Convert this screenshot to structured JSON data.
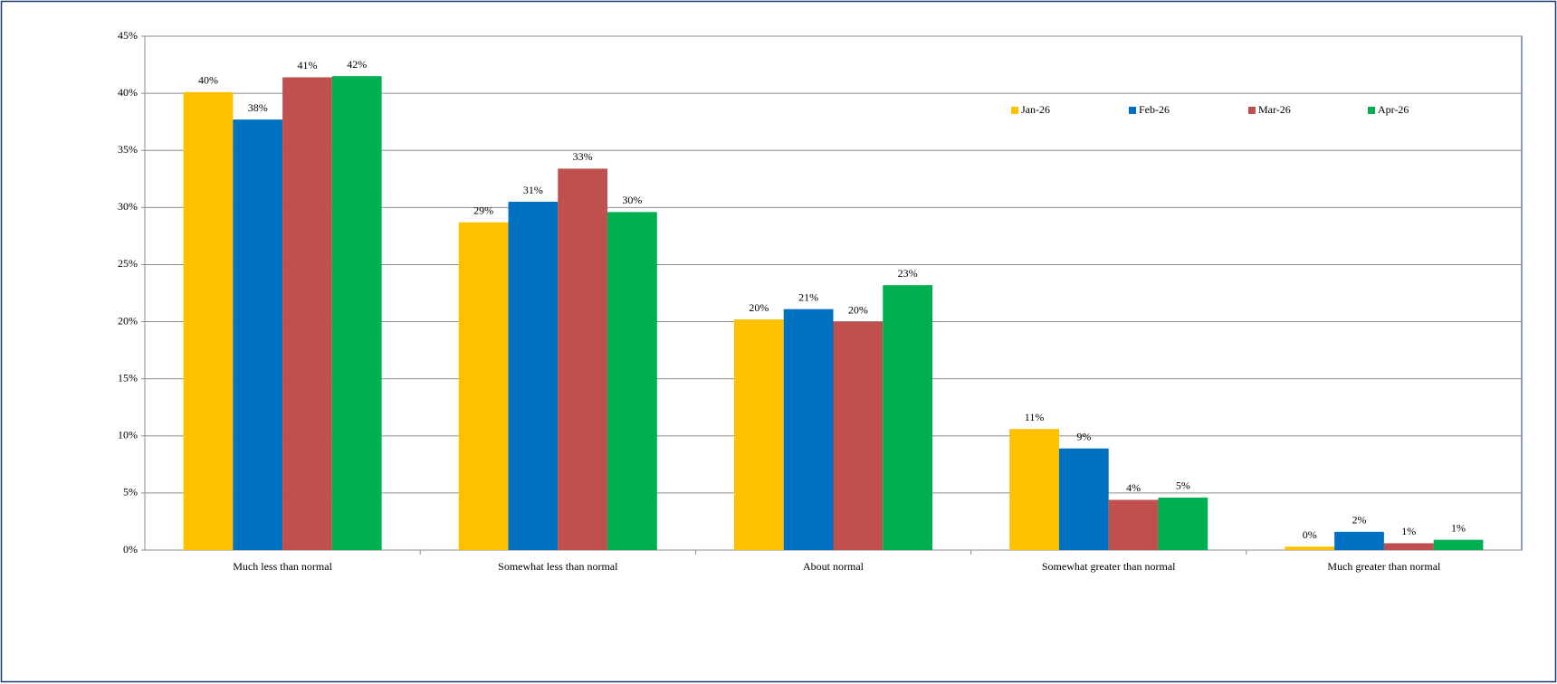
{
  "chart_data": {
    "type": "bar",
    "categories": [
      "Much less than normal",
      "Somewhat less than normal",
      "About normal",
      "Somewhat greater than normal",
      "Much greater than normal"
    ],
    "series": [
      {
        "name": "Jan-26",
        "color": "#ffc000",
        "values": [
          40.1,
          28.7,
          20.2,
          10.6,
          0.3
        ],
        "value_labels": [
          "40%",
          "29%",
          "20%",
          "11%",
          "0%"
        ]
      },
      {
        "name": "Feb-26",
        "color": "#0070c0",
        "values": [
          37.7,
          30.5,
          21.1,
          8.9,
          1.6
        ],
        "value_labels": [
          "38%",
          "31%",
          "21%",
          "9%",
          "2%"
        ]
      },
      {
        "name": "Mar-26",
        "color": "#c0504d",
        "values": [
          41.4,
          33.4,
          20.0,
          4.4,
          0.6
        ],
        "value_labels": [
          "41%",
          "33%",
          "20%",
          "4%",
          "1%"
        ]
      },
      {
        "name": "Apr-26",
        "color": "#00b050",
        "values": [
          41.5,
          29.6,
          23.2,
          4.6,
          0.9
        ],
        "value_labels": [
          "42%",
          "30%",
          "23%",
          "5%",
          "1%"
        ]
      }
    ],
    "ylim": [
      0,
      45
    ],
    "yticks": [
      {
        "value": 0,
        "label": "0%"
      },
      {
        "value": 5,
        "label": "5%"
      },
      {
        "value": 10,
        "label": "10%"
      },
      {
        "value": 15,
        "label": "15%"
      },
      {
        "value": 20,
        "label": "20%"
      },
      {
        "value": 25,
        "label": "25%"
      },
      {
        "value": 30,
        "label": "30%"
      },
      {
        "value": 35,
        "label": "35%"
      },
      {
        "value": 40,
        "label": "40%"
      },
      {
        "value": 45,
        "label": "45%"
      }
    ],
    "grid": true,
    "legend": "top-right"
  }
}
